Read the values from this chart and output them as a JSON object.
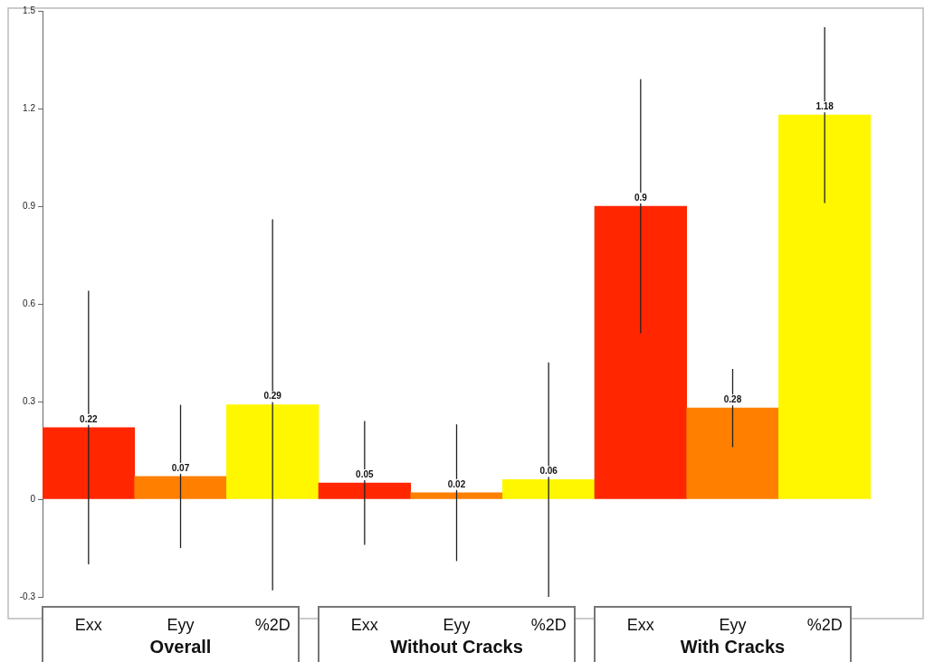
{
  "chart_data": {
    "type": "bar",
    "categories": [
      "Exx",
      "Eyy",
      "%2D",
      "Exx",
      "Eyy",
      "%2D",
      "Exx",
      "Eyy",
      "%2D"
    ],
    "values": [
      0.22,
      0.07,
      0.29,
      0.05,
      0.02,
      0.06,
      0.9,
      0.28,
      1.18
    ],
    "errors": [
      0.42,
      0.22,
      0.57,
      0.19,
      0.21,
      0.36,
      0.39,
      0.12,
      0.27
    ],
    "colors": [
      "#ff2600",
      "#ff7f00",
      "#fff700",
      "#ff2600",
      "#ff7f00",
      "#fff700",
      "#ff2600",
      "#ff7f00",
      "#fff700"
    ],
    "annotations": [
      "Overall",
      "Without Cracks",
      "With Cracks"
    ],
    "ylim": [
      -0.3,
      1.5
    ],
    "yticks": [
      -0.3,
      0,
      0.3,
      0.6,
      0.9,
      1.2,
      1.5
    ],
    "grid": false,
    "data_labels": true
  }
}
